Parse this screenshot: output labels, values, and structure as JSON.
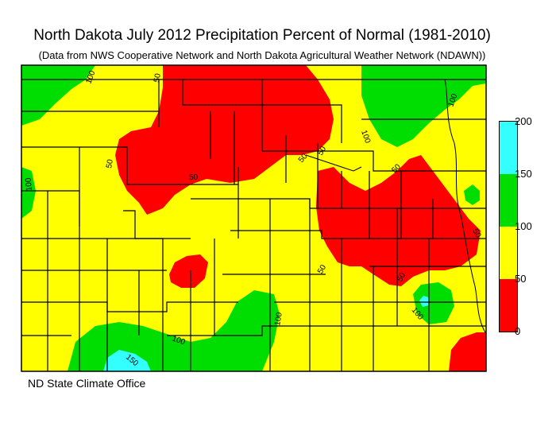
{
  "title": "North Dakota July 2012 Precipitation Percent of Normal (1981-2010)",
  "subtitle": "(Data from NWS Cooperative Network and North Dakota Agricultural Weather Network (NDAWN))",
  "credit": "ND State Climate Office",
  "legend": {
    "ticks": [
      "200",
      "150",
      "100",
      "50",
      "0"
    ],
    "bands": [
      {
        "range": "150-200",
        "color": "#33ffff"
      },
      {
        "range": "100-150",
        "color": "#00dd00"
      },
      {
        "range": "50-100",
        "color": "#ffff00"
      },
      {
        "range": "0-50",
        "color": "#ff0000"
      }
    ]
  },
  "contour_labels": [
    "100",
    "50",
    "100",
    "100",
    "50",
    "50",
    "100",
    "50",
    "50",
    "50",
    "50",
    "50",
    "100",
    "50",
    "100",
    "100",
    "150"
  ],
  "colors": {
    "red": "#ff0000",
    "yellow": "#ffff00",
    "green": "#00dd00",
    "cyan": "#33ffff",
    "county_lines": "#000000"
  }
}
